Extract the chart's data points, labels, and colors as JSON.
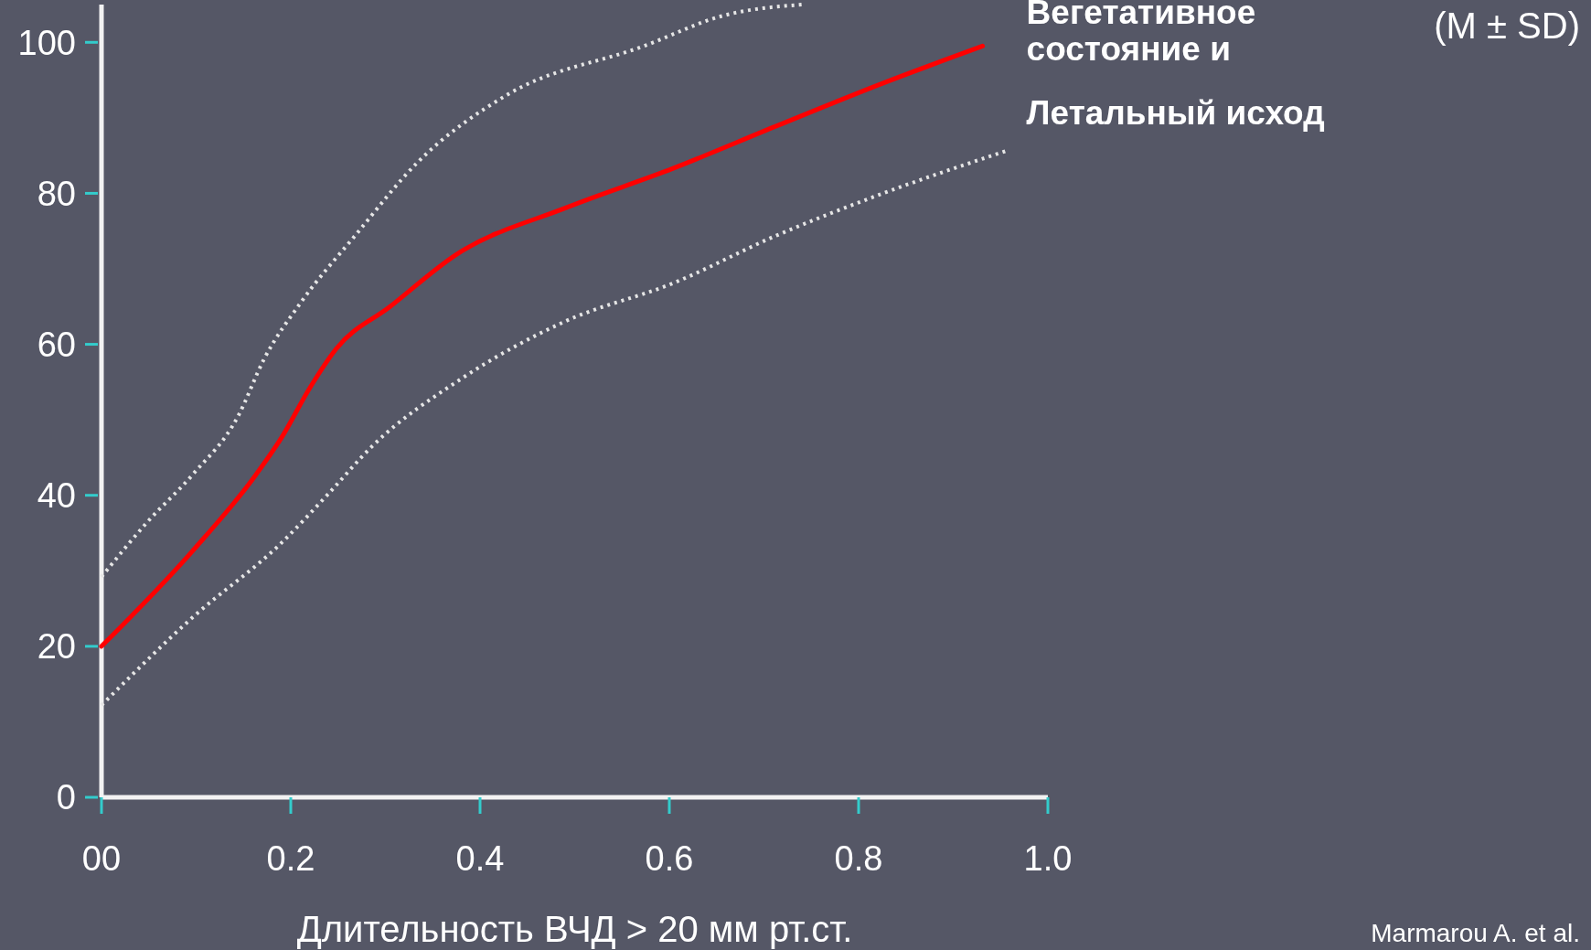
{
  "chart_data": {
    "type": "line",
    "xlabel": "Длительность ВЧД > 20 мм рт.ст.",
    "annotations": [
      "(M ± SD)",
      "Marmarou A. et al."
    ],
    "xlim": [
      0,
      1.0
    ],
    "ylim": [
      0,
      105
    ],
    "xticks": [
      {
        "value": 0,
        "label": "00"
      },
      0.2,
      0.4,
      0.6,
      0.8,
      {
        "value": 1.0,
        "label": "1.0"
      }
    ],
    "yticks": [
      0,
      20,
      40,
      60,
      80,
      100
    ],
    "series": [
      {
        "name": "Вегетативное состояние и Летальный исход",
        "color": "#ff0000",
        "line_style": "solid",
        "x": [
          0,
          0.096,
          0.163,
          0.191,
          0.22,
          0.248,
          0.305,
          0.375,
          0.491,
          0.604,
          0.713,
          0.826,
          0.931
        ],
        "values": [
          20,
          32.6,
          42.7,
          47.8,
          54.2,
          59.4,
          65,
          71.9,
          78.1,
          83.3,
          88.9,
          94.6,
          99.5
        ]
      },
      {
        "color": "#e6e6e6",
        "line_style": "dotted",
        "x": [
          0,
          0.048,
          0.096,
          0.144,
          0.172,
          0.211,
          0.268,
          0.334,
          0.428,
          0.573,
          0.659,
          0.74
        ],
        "values": [
          29.2,
          36.4,
          42.7,
          50.4,
          58.1,
          65.6,
          74.4,
          84.1,
          93,
          99.5,
          103.6,
          105
        ]
      },
      {
        "color": "#e6e6e6",
        "line_style": "dotted",
        "x": [
          0,
          0.096,
          0.191,
          0.239,
          0.286,
          0.381,
          0.491,
          0.604,
          0.713,
          0.826,
          0.958
        ],
        "values": [
          12.2,
          23.8,
          33.8,
          40.1,
          46.5,
          55.5,
          63.1,
          68.1,
          74.4,
          80,
          85.7
        ]
      }
    ]
  }
}
